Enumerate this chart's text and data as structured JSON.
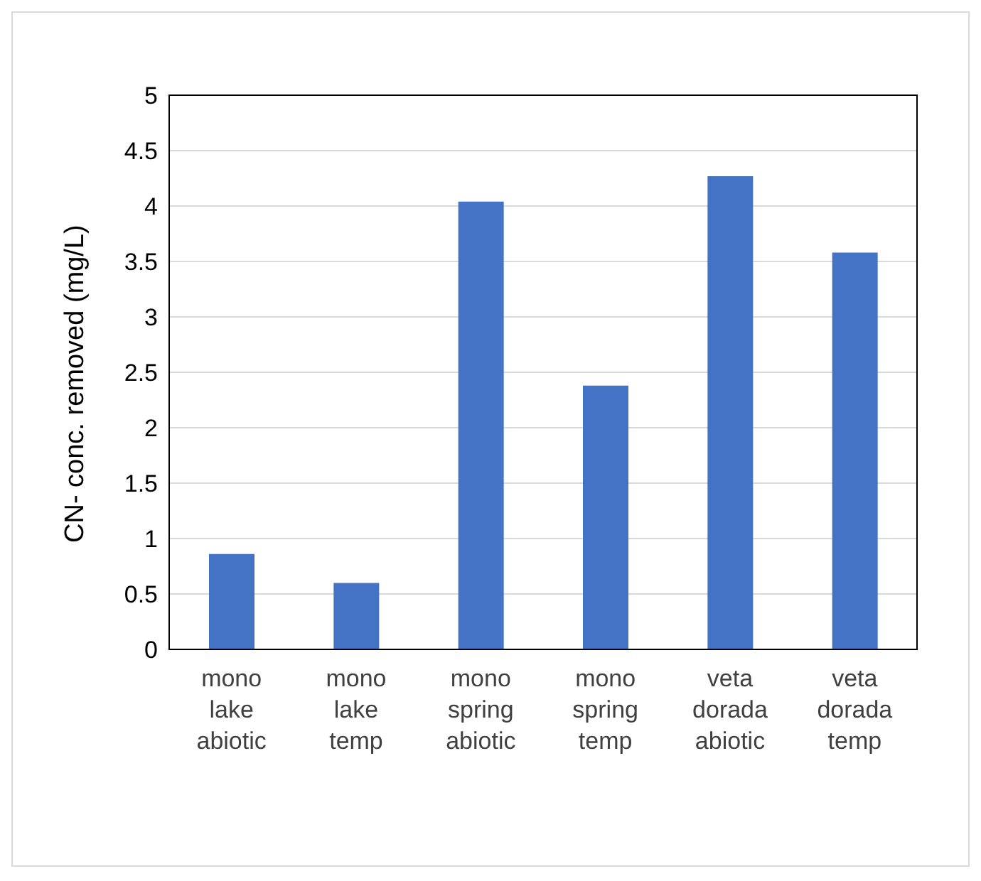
{
  "chart_data": {
    "type": "bar",
    "ylabel": "CN- conc. removed (mg/L)",
    "categories": [
      "mono lake abiotic",
      "mono lake temp",
      "mono spring abiotic",
      "mono spring temp",
      "veta dorada abiotic",
      "veta dorada temp"
    ],
    "values": [
      0.86,
      0.6,
      4.04,
      2.38,
      4.27,
      3.58
    ],
    "color": "#4472c4",
    "ylim": [
      0,
      5
    ],
    "yticks": [
      0,
      0.5,
      1,
      1.5,
      2,
      2.5,
      3,
      3.5,
      4,
      4.5,
      5
    ],
    "grid": "y"
  }
}
